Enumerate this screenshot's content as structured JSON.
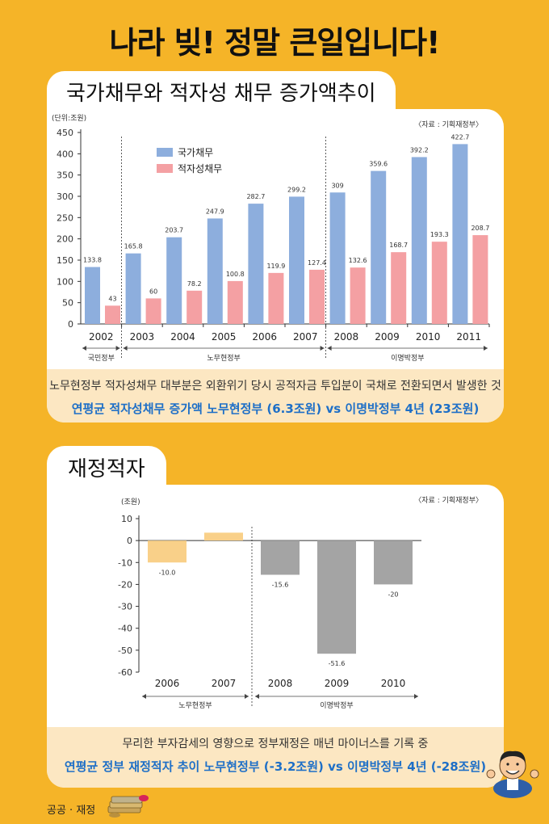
{
  "headline": "나라 빚! 정말 큰일입니다!",
  "colors": {
    "background": "#F5B428",
    "blue": "#8DAEDD",
    "pink": "#F4A0A3",
    "light_orange": "#F9D089",
    "gray": "#A4A4A4",
    "accent": "#1E6FC7"
  },
  "section1": {
    "tab": "국가채무와 적자성 채무 증가액추이",
    "footnote": "노무현정부 적자성채무 대부분은 외환위기 당시 공적자금 투입분이 국채로 전환되면서 발생한 것",
    "highlight": "연평균 적자성채무 증가액 노무현정부 (6.3조원) vs 이명박정부 4년 (23조원)"
  },
  "section2": {
    "tab": "재정적자",
    "footnote": "무리한 부자감세의 영향으로 정부재정은 매년 마이너스를 기록 중",
    "highlight": "연평균 정부 재정적자 추이 노무현정부 (-3.2조원) vs 이명박정부 4년 (-28조원)"
  },
  "category_tag": "공공 · 재정",
  "chart_data": [
    {
      "type": "bar",
      "unit": "(단위:조원)",
      "source": "〈자료 : 기획재정부〉",
      "categories": [
        "2002",
        "2003",
        "2004",
        "2005",
        "2006",
        "2007",
        "2008",
        "2009",
        "2010",
        "2011"
      ],
      "series": [
        {
          "name": "국가채무",
          "color": "#8DAEDD",
          "values": [
            133.8,
            165.8,
            203.7,
            247.9,
            282.7,
            299.2,
            309,
            359.6,
            392.2,
            422.7
          ],
          "labels": [
            "133.8",
            "165.8",
            "203.7",
            "247.9",
            "282.7",
            "299.2",
            "309",
            "359.6",
            "392.2",
            "422.7"
          ]
        },
        {
          "name": "적자성채무",
          "color": "#F4A0A3",
          "values": [
            43,
            60,
            78.2,
            100.8,
            119.9,
            127.4,
            132.6,
            168.7,
            193.3,
            208.7
          ],
          "labels": [
            "43",
            "60",
            "78.2",
            "100.8",
            "119.9",
            "127.4",
            "132.6",
            "168.7",
            "193.3",
            "208.7"
          ]
        }
      ],
      "yticks": [
        0,
        50,
        100,
        150,
        200,
        250,
        300,
        350,
        400,
        450
      ],
      "ylim": [
        0,
        450
      ],
      "grid": false,
      "legend": "top-left",
      "periods": [
        {
          "label": "국민정부",
          "from": 0,
          "to": 0
        },
        {
          "label": "노무현정부",
          "from": 1,
          "to": 5
        },
        {
          "label": "이명박정부",
          "from": 6,
          "to": 9
        }
      ]
    },
    {
      "type": "bar",
      "unit": "(조원)",
      "source": "〈자료 : 기획재정부〉",
      "categories": [
        "2006",
        "2007",
        "2008",
        "2009",
        "2010"
      ],
      "values": [
        -10.0,
        3.6,
        -15.6,
        -51.6,
        -20
      ],
      "labels": [
        "-10.0",
        "",
        "-15.6",
        "-51.6",
        "-20"
      ],
      "colors": [
        "#F9D089",
        "#F9D089",
        "#A4A4A4",
        "#A4A4A4",
        "#A4A4A4"
      ],
      "yticks": [
        10,
        0,
        -10,
        -20,
        -30,
        -40,
        -50,
        -60
      ],
      "ylim": [
        -60,
        10
      ],
      "grid": false,
      "periods": [
        {
          "label": "노무현정부",
          "from": 0,
          "to": 1
        },
        {
          "label": "이명박정부",
          "from": 2,
          "to": 4
        }
      ]
    }
  ]
}
